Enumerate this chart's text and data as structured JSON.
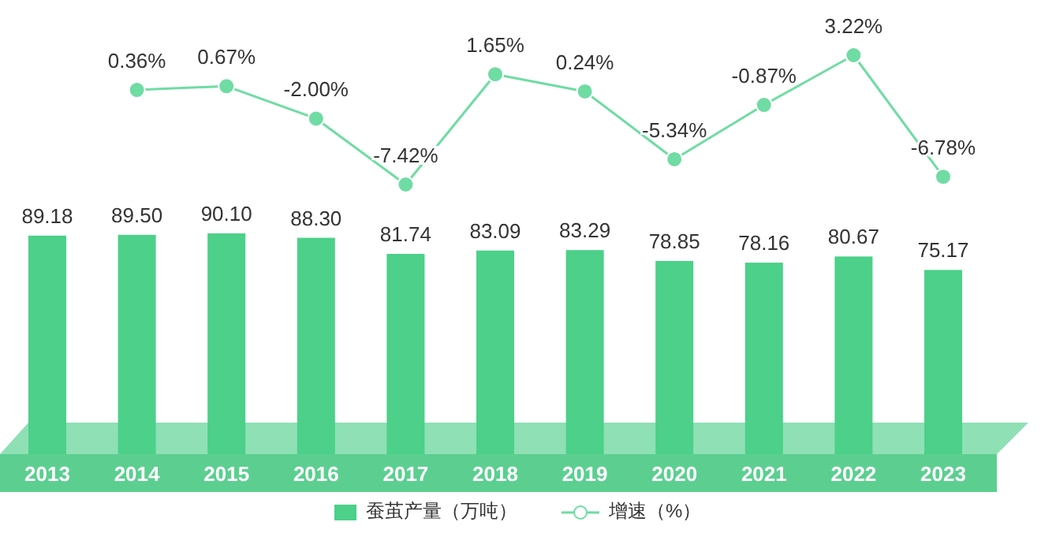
{
  "chart_data": [
    {
      "type": "bar",
      "categories": [
        "2013",
        "2014",
        "2015",
        "2016",
        "2017",
        "2018",
        "2019",
        "2020",
        "2021",
        "2022",
        "2023"
      ],
      "series": [
        {
          "name": "蚕茧产量（万吨）",
          "color": "#4cd08a",
          "values": [
            89.18,
            89.5,
            90.1,
            88.3,
            81.74,
            83.09,
            83.29,
            78.85,
            78.16,
            80.67,
            75.17
          ],
          "value_labels": [
            "89.18",
            "89.50",
            "90.10",
            "88.30",
            "81.74",
            "83.09",
            "83.29",
            "78.85",
            "78.16",
            "80.67",
            "75.17"
          ]
        }
      ],
      "legend": "bottom",
      "tick_labels": "x"
    },
    {
      "type": "line",
      "categories": [
        "2013",
        "2014",
        "2015",
        "2016",
        "2017",
        "2018",
        "2019",
        "2020",
        "2021",
        "2022",
        "2023"
      ],
      "series": [
        {
          "name": "增速（%）",
          "color": "#6fdca3",
          "values": [
            null,
            0.36,
            0.67,
            -2.0,
            -7.42,
            1.65,
            0.24,
            -5.34,
            -0.87,
            3.22,
            -6.78
          ],
          "value_labels": [
            null,
            "0.36%",
            "0.67%",
            "-2.00%",
            "-7.42%",
            "1.65%",
            "0.24%",
            "-5.34%",
            "-0.87%",
            "3.22%",
            "-6.78%"
          ]
        }
      ],
      "marker": "circle",
      "legend": "bottom",
      "tick_labels": false
    }
  ]
}
